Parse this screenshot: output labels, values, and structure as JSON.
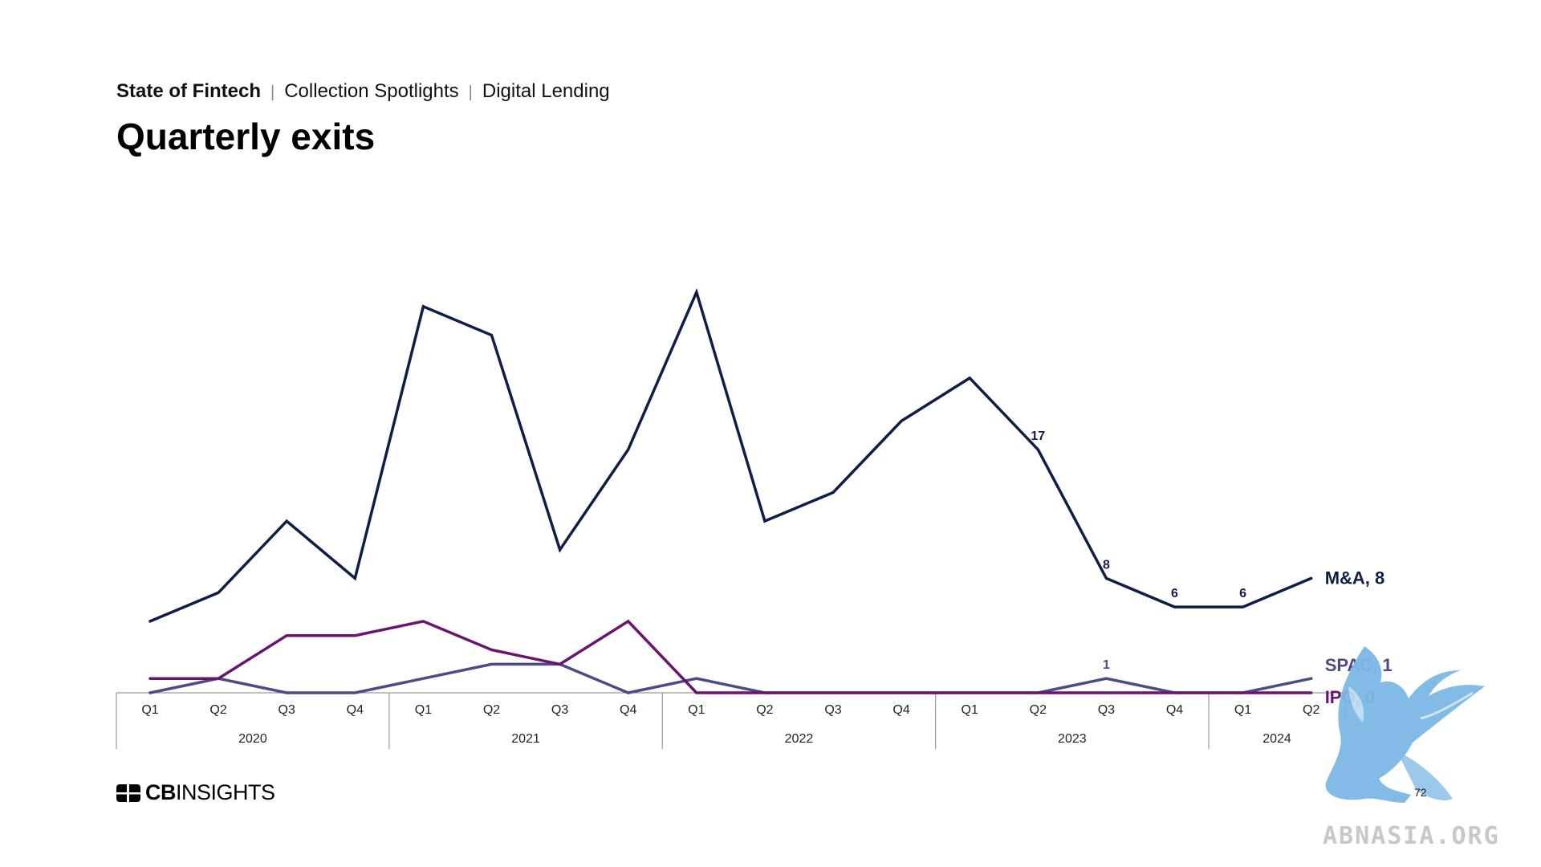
{
  "header": {
    "brand": "State of Fintech",
    "section": "Collection Spotlights",
    "topic": "Digital Lending",
    "separator": "|"
  },
  "page_title": "Quarterly exits",
  "footer": {
    "logo_bold": "CB",
    "logo_light": "INSIGHTS",
    "page_number": "72"
  },
  "watermark": {
    "text": "ABNASIA.ORG",
    "color": "#7cb8e4"
  },
  "colors": {
    "ma": "#0f1e46",
    "ipo": "#6a1470",
    "spac": "#4e4a86",
    "axis": "#999999"
  },
  "chart_data": {
    "type": "line",
    "title": "Quarterly exits",
    "xlabel": "",
    "ylabel": "",
    "years": [
      {
        "label": "2020",
        "quarters": 4
      },
      {
        "label": "2021",
        "quarters": 4
      },
      {
        "label": "2022",
        "quarters": 4
      },
      {
        "label": "2023",
        "quarters": 4
      },
      {
        "label": "2024",
        "quarters": 2
      }
    ],
    "categories": [
      "Q1",
      "Q2",
      "Q3",
      "Q4",
      "Q1",
      "Q2",
      "Q3",
      "Q4",
      "Q1",
      "Q2",
      "Q3",
      "Q4",
      "Q1",
      "Q2",
      "Q3",
      "Q4",
      "Q1",
      "Q2"
    ],
    "ylim": [
      0,
      28
    ],
    "grid": false,
    "legend": "end-of-line labels",
    "series": [
      {
        "name": "M&A",
        "end_label": "M&A, 8",
        "color": "#0f1e46",
        "values": [
          5,
          7,
          12,
          8,
          27,
          25,
          10,
          17,
          28,
          12,
          14,
          19,
          22,
          17,
          8,
          6,
          6,
          8
        ],
        "data_labels": [
          {
            "index": 13,
            "text": "17"
          },
          {
            "index": 14,
            "text": "8"
          },
          {
            "index": 15,
            "text": "6"
          },
          {
            "index": 16,
            "text": "6"
          }
        ]
      },
      {
        "name": "SPAC",
        "end_label": "SPAC, 1",
        "color": "#4e4a86",
        "values": [
          0,
          1,
          0,
          0,
          1,
          2,
          2,
          0,
          1,
          0,
          0,
          0,
          0,
          0,
          1,
          0,
          0,
          1
        ],
        "data_labels": [
          {
            "index": 14,
            "text": "1"
          }
        ]
      },
      {
        "name": "IPO",
        "end_label": "IPO, 0",
        "color": "#6a1470",
        "values": [
          1,
          1,
          4,
          4,
          5,
          3,
          2,
          5,
          0,
          0,
          0,
          0,
          0,
          0,
          0,
          0,
          0,
          0
        ],
        "data_labels": []
      }
    ]
  }
}
